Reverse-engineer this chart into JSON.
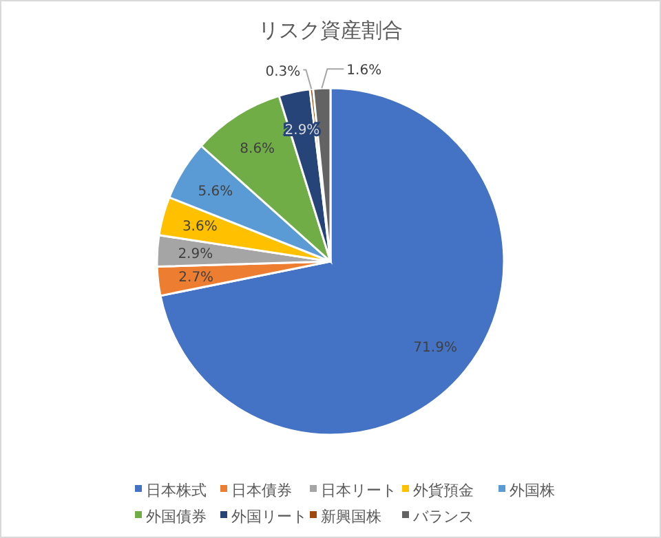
{
  "chart_data": {
    "type": "pie",
    "title": "リスク資産割合",
    "categories": [
      "日本株式",
      "日本債券",
      "日本リート",
      "外貨預金",
      "外国株",
      "外国債券",
      "外国リート",
      "新興国株",
      "バランス"
    ],
    "values": [
      71.9,
      2.7,
      2.9,
      3.6,
      5.6,
      8.6,
      2.9,
      0.3,
      1.6
    ],
    "colors": [
      "#4472c4",
      "#ed7d31",
      "#a5a5a5",
      "#ffc000",
      "#5b9bd5",
      "#70ad47",
      "#264478",
      "#9e480e",
      "#636363"
    ],
    "value_labels": [
      "71.9%",
      "2.7%",
      "2.9%",
      "3.6%",
      "5.6%",
      "8.6%",
      "2.9%",
      "0.3%",
      "1.6%"
    ],
    "legend": "bottom"
  }
}
